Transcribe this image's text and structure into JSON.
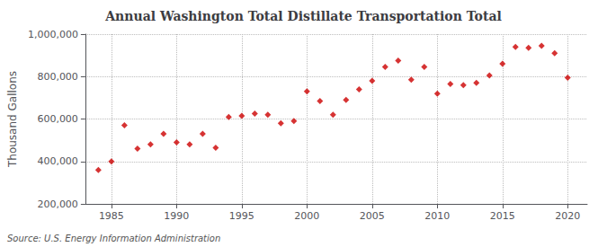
{
  "chart_data": {
    "type": "scatter",
    "title": "Annual Washington Total Distillate Transportation Total",
    "ylabel": "Thousand Gallons",
    "annotation": "Source: U.S. Energy Information Administration",
    "x": [
      1984,
      1985,
      1986,
      1987,
      1988,
      1989,
      1990,
      1991,
      1992,
      1993,
      1994,
      1995,
      1996,
      1997,
      1998,
      1999,
      2000,
      2001,
      2002,
      2003,
      2004,
      2005,
      2006,
      2007,
      2008,
      2009,
      2010,
      2011,
      2012,
      2013,
      2014,
      2015,
      2016,
      2017,
      2018,
      2019,
      2020
    ],
    "values": [
      360000,
      400000,
      570000,
      460000,
      480000,
      530000,
      490000,
      480000,
      530000,
      465000,
      610000,
      615000,
      625000,
      620000,
      580000,
      590000,
      730000,
      685000,
      620000,
      690000,
      740000,
      780000,
      845000,
      875000,
      785000,
      845000,
      720000,
      765000,
      760000,
      770000,
      805000,
      860000,
      940000,
      935000,
      945000,
      910000,
      795000
    ],
    "color": "#cc0000",
    "marker": "diamond",
    "xlim": [
      1983,
      2021.5
    ],
    "xticks": [
      1985,
      1990,
      1995,
      2000,
      2005,
      2010,
      2015,
      2020
    ],
    "ylim": [
      200000,
      1000000
    ],
    "yticks": [
      {
        "value": 200000,
        "label": "200,000"
      },
      {
        "value": 400000,
        "label": "400,000"
      },
      {
        "value": 600000,
        "label": "600,000"
      },
      {
        "value": 800000,
        "label": "800,000"
      },
      {
        "value": 1000000,
        "label": "1,000,000"
      }
    ],
    "grid": true
  }
}
